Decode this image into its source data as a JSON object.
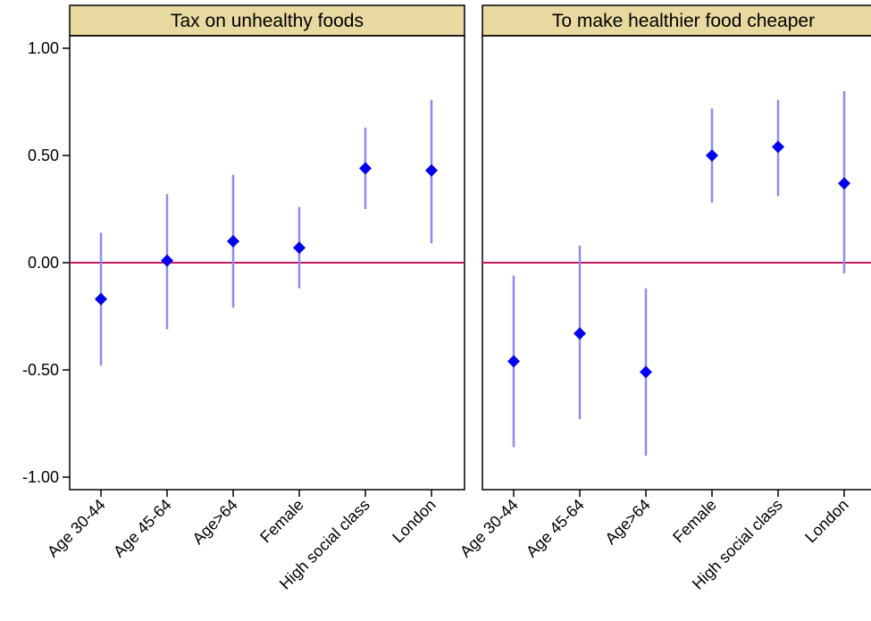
{
  "chart_data": [
    {
      "type": "scatter",
      "title": "Tax on unhealthy foods",
      "categories": [
        "Age 30-44",
        "Age 45-64",
        "Age>64",
        "Female",
        "High social class",
        "London"
      ],
      "values": [
        -0.17,
        0.01,
        0.1,
        0.07,
        0.44,
        0.43
      ],
      "ci_low": [
        -0.48,
        -0.31,
        -0.21,
        -0.12,
        0.25,
        0.09
      ],
      "ci_high": [
        0.14,
        0.32,
        0.41,
        0.26,
        0.63,
        0.76
      ],
      "reference_line": 0,
      "ylim": [
        -1.05,
        1.1
      ],
      "yticks": [
        "1.00",
        "0.50",
        "0.00",
        "-0.50",
        "-1.00"
      ],
      "xlabel": "",
      "ylabel": ""
    },
    {
      "type": "scatter",
      "title": "To make healthier food cheaper",
      "categories": [
        "Age 30-44",
        "Age 45-64",
        "Age>64",
        "Female",
        "High social class",
        "London"
      ],
      "values": [
        -0.46,
        -0.33,
        -0.51,
        0.5,
        0.54,
        0.37
      ],
      "ci_low": [
        -0.86,
        -0.73,
        -0.9,
        0.28,
        0.31,
        -0.05
      ],
      "ci_high": [
        -0.06,
        0.08,
        -0.12,
        0.72,
        0.76,
        0.8
      ],
      "reference_line": 0,
      "ylim": [
        -1.05,
        1.1
      ],
      "xlabel": "",
      "ylabel": ""
    }
  ],
  "colors": {
    "marker": "#0000ee",
    "ci_line": "#8c8cf0",
    "reference_line": "#c0185a",
    "strip_fill": "#e8d9a0",
    "axis": "#000000"
  }
}
